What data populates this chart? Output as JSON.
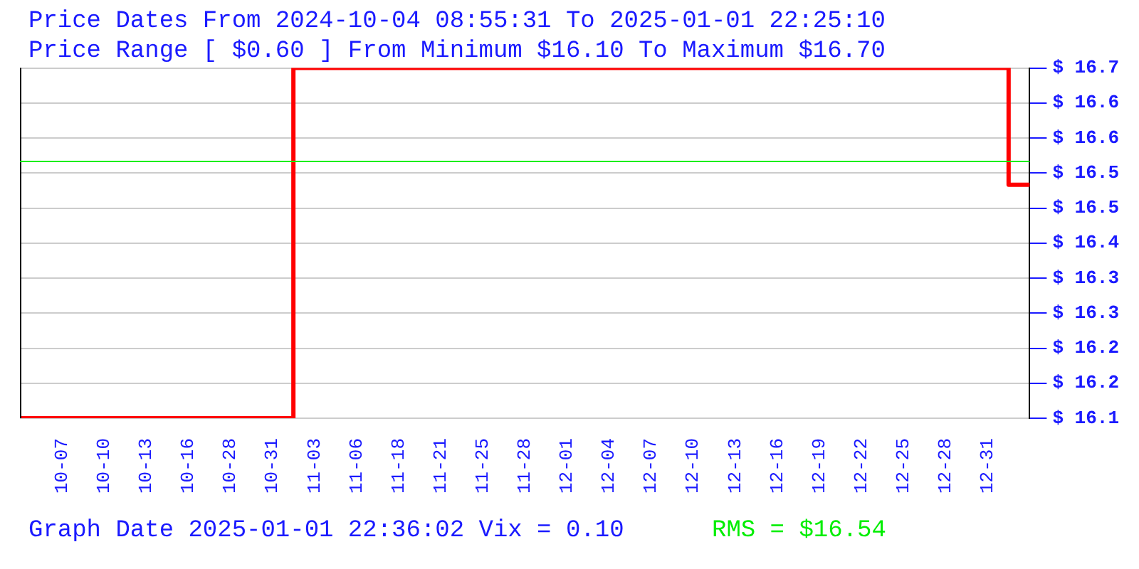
{
  "chart_data": {
    "type": "step",
    "title": "Price Dates From 2024-10-04 08:55:31 To 2025-01-01 22:25:10",
    "subtitle": "Price Range [ $0.60 ] From Minimum $16.10 To Maximum $16.70",
    "categories": [
      null,
      "10-07",
      "10-10",
      "10-13",
      "10-16",
      "10-28",
      "10-31",
      "11-03",
      "11-06",
      "11-18",
      "11-21",
      "11-25",
      "11-28",
      "12-01",
      "12-04",
      "12-07",
      "12-10",
      "12-13",
      "12-16",
      "12-19",
      "12-22",
      "12-25",
      "12-28",
      "12-31",
      null
    ],
    "series": [
      {
        "color": "#ff0000",
        "values": [
          16.1,
          16.1,
          16.1,
          16.1,
          16.1,
          16.1,
          16.1,
          16.7,
          16.7,
          16.7,
          16.7,
          16.7,
          16.7,
          16.7,
          16.7,
          16.7,
          16.7,
          16.7,
          16.7,
          16.7,
          16.7,
          16.7,
          16.7,
          16.7,
          16.5
        ]
      }
    ],
    "ylim": [
      16.1,
      16.7
    ],
    "yticks": [
      {
        "value": 16.1,
        "label": "$ 16.1"
      },
      {
        "value": 16.16,
        "label": "$ 16.2"
      },
      {
        "value": 16.22,
        "label": "$ 16.2"
      },
      {
        "value": 16.28,
        "label": "$ 16.3"
      },
      {
        "value": 16.34,
        "label": "$ 16.3"
      },
      {
        "value": 16.4,
        "label": "$ 16.4"
      },
      {
        "value": 16.46,
        "label": "$ 16.5"
      },
      {
        "value": 16.52,
        "label": "$ 16.5"
      },
      {
        "value": 16.58,
        "label": "$ 16.6"
      },
      {
        "value": 16.64,
        "label": "$ 16.6"
      },
      {
        "value": 16.7,
        "label": "$ 16.7"
      }
    ],
    "ref_lines": [
      {
        "axis": "y",
        "value": 16.54,
        "label": "RMS = $16.54",
        "color": "#00ee00"
      }
    ],
    "annotations": [
      "Graph Date 2025-01-01 22:36:02 Vix = 0.10"
    ],
    "grid": "y",
    "legend": false,
    "marker": "none"
  }
}
